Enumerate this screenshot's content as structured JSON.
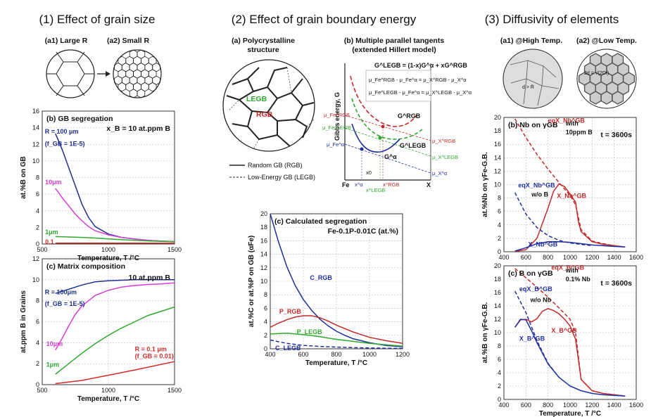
{
  "sections": {
    "s1": "(1) Effect of grain size",
    "s2": "(2) Effect of grain boundary energy",
    "s3": "(3) Diffusivity of elements"
  },
  "s1_schematic": {
    "a1": "(a1) Large R",
    "a2": "(a2) Small R"
  },
  "s2_schematic": {
    "a": "(a) Polycrystalline structure",
    "a_line1": "(a) Polycrystalline",
    "a_line2": "structure",
    "legb": "LEGB",
    "rgb": "RGB",
    "legend_rgb": "Random GB (RGB)",
    "legend_legb": "Low-Energy GB (LEGB)",
    "b_line1": "(b) Multiple parallel tangents",
    "b_line2": "(extended Hillert model)",
    "eq_main": "G^LEGB = (1-x)G^α + xG^RGB",
    "eq_rgb": "μ_Fe^RGB - μ_Fe^α = μ_X^RGB - μ_X^α",
    "eq_legb": "μ_Fe^LEGB - μ_Fe^α = μ_X^LEGB - μ_X^α",
    "ylabel": "Gibbs energy, G",
    "xl_fe": "Fe",
    "xl_x": "X",
    "c_grgb": "G^RGB",
    "c_glegb": "G^LEGB",
    "c_galpha": "G^α",
    "mu_fe_rgb": "μ_Fe^RGB",
    "mu_fe_legb": "μ_Fe^LEGB",
    "mu_fe_a": "μ_Fe^α",
    "mu_x_rgb": "μ_X^RGB",
    "mu_x_legb": "μ_X^LEGB",
    "mu_x_a": "μ_X^α",
    "x0": "x0",
    "xa": "x^α",
    "xlegb": "x^LEGB",
    "xrgb": "x^RGB"
  },
  "s3_schematic": {
    "a1": "(a1) @High Temp.",
    "a2": "(a2) @Low Temp.",
    "note1": "d > R̄",
    "note2": "2d = √(2Dt)"
  },
  "chart_data": [
    {
      "id": "1b",
      "type": "line",
      "title": "(b) GB segregation",
      "annotation": "x_B = 10 at.ppm B",
      "xlabel": "Temperature, T /°C",
      "ylabel": "at.%B on GB",
      "xlim": [
        500,
        1500
      ],
      "ylim": [
        0,
        16
      ],
      "xticks": [
        500,
        1000,
        1500
      ],
      "yticks": [
        0,
        2,
        4,
        6,
        8,
        10,
        12,
        14,
        16
      ],
      "series": [
        {
          "name": "R = 100 μm (f_GB = 1E-5)",
          "color": "#1f2f8f",
          "x": [
            600,
            650,
            700,
            750,
            800,
            850,
            900,
            1000,
            1100,
            1200,
            1300,
            1400,
            1500
          ],
          "y": [
            13.3,
            11.4,
            9.2,
            7.0,
            4.8,
            3.2,
            2.1,
            1.2,
            0.8,
            0.6,
            0.45,
            0.35,
            0.3
          ]
        },
        {
          "name": "10 μm",
          "color": "#d43fd4",
          "x": [
            600,
            650,
            700,
            750,
            800,
            850,
            900,
            1000,
            1100,
            1200,
            1300,
            1400,
            1500
          ],
          "y": [
            6.7,
            5.6,
            4.6,
            3.6,
            2.8,
            2.1,
            1.6,
            1.1,
            0.8,
            0.6,
            0.45,
            0.35,
            0.3
          ]
        },
        {
          "name": "1 μm",
          "color": "#2fa82f",
          "x": [
            600,
            700,
            800,
            900,
            1000,
            1100,
            1200,
            1300,
            1400,
            1500
          ],
          "y": [
            0.9,
            0.85,
            0.8,
            0.72,
            0.62,
            0.52,
            0.44,
            0.37,
            0.32,
            0.28
          ]
        },
        {
          "name": "0.1",
          "color": "#d42a2a",
          "x": [
            600,
            800,
            1000,
            1200,
            1500
          ],
          "y": [
            0.1,
            0.1,
            0.1,
            0.1,
            0.09
          ]
        }
      ],
      "labels": {
        "r100": "R = 100 μm",
        "fgb100": "(f_GB = 1E-5)",
        "r10": "10μm",
        "r1": "1μm",
        "r01": "0.1"
      }
    },
    {
      "id": "1c",
      "type": "line",
      "title": "(c) Matrix composition",
      "annotation": "10 at.ppm B",
      "xlabel": "Temperature, T /°C",
      "ylabel": "at.ppm B in Grains",
      "xlim": [
        500,
        1500
      ],
      "ylim": [
        0,
        12
      ],
      "xticks": [
        500,
        1000,
        1500
      ],
      "yticks": [
        0,
        2,
        4,
        6,
        8,
        10,
        12
      ],
      "series": [
        {
          "name": "R = 100 μm (f_GB = 1E-5)",
          "color": "#1f2f8f",
          "x": [
            600,
            700,
            800,
            900,
            1000,
            1200,
            1500
          ],
          "y": [
            8.7,
            9.1,
            9.5,
            9.8,
            9.9,
            10.0,
            10.0
          ]
        },
        {
          "name": "10 μm",
          "color": "#d43fd4",
          "x": [
            600,
            650,
            700,
            750,
            800,
            900,
            1000,
            1100,
            1200,
            1300,
            1400,
            1500
          ],
          "y": [
            3.3,
            4.4,
            5.6,
            6.7,
            7.5,
            8.5,
            9.0,
            9.3,
            9.45,
            9.55,
            9.6,
            9.7
          ]
        },
        {
          "name": "1 μm",
          "color": "#2fa82f",
          "x": [
            600,
            700,
            800,
            900,
            1000,
            1100,
            1200,
            1300,
            1400,
            1500
          ],
          "y": [
            1.0,
            2.0,
            3.0,
            3.9,
            4.7,
            5.4,
            6.0,
            6.6,
            7.0,
            7.4
          ]
        },
        {
          "name": "R = 0.1 μm (f_GB = 0.01)",
          "color": "#d42a2a",
          "x": [
            600,
            800,
            1000,
            1200,
            1500
          ],
          "y": [
            0.1,
            0.4,
            0.9,
            1.4,
            2.2
          ]
        }
      ],
      "labels": {
        "r100": "R = 100μm",
        "fgb100": "(f_GB = 1E-5)",
        "r10": "10μm",
        "r1": "1μm",
        "r01": "R = 0.1 μm",
        "fgb01": "(f_GB = 0.01)"
      }
    },
    {
      "id": "2c",
      "type": "line",
      "title": "(c) Calculated segregation",
      "annotation": "Fe-0.1P-0.01C (at.%)",
      "xlabel": "Temperature, T /°C",
      "ylabel": "at.%C or at.%P on GB (αFe)",
      "xlim": [
        400,
        1200
      ],
      "ylim": [
        0,
        20
      ],
      "xticks": [
        400,
        600,
        800,
        1000,
        1200
      ],
      "yticks": [
        0,
        2,
        4,
        6,
        8,
        10,
        12,
        14,
        16,
        18,
        20
      ],
      "series": [
        {
          "name": "C_RGB",
          "color": "#1f2f9f",
          "x": [
            400,
            450,
            500,
            550,
            600,
            650,
            700,
            750,
            800,
            850,
            900,
            950,
            1000,
            1100,
            1200
          ],
          "y": [
            20.0,
            15.8,
            12.2,
            9.4,
            7.3,
            5.7,
            4.4,
            3.4,
            2.6,
            2.0,
            1.5,
            1.2,
            0.9,
            0.5,
            0.3
          ]
        },
        {
          "name": "P_RGB",
          "color": "#c42a2a",
          "x": [
            400,
            450,
            500,
            550,
            600,
            650,
            700,
            750,
            800,
            900,
            1000,
            1100,
            1200
          ],
          "y": [
            3.2,
            3.8,
            4.3,
            4.7,
            4.9,
            4.9,
            4.6,
            4.1,
            3.5,
            2.5,
            1.7,
            1.2,
            0.8
          ]
        },
        {
          "name": "P_LEGB",
          "color": "#2fa82f",
          "x": [
            400,
            500,
            600,
            700,
            800,
            900,
            1000,
            1100,
            1200
          ],
          "y": [
            2.2,
            2.3,
            2.1,
            1.8,
            1.4,
            1.1,
            0.8,
            0.6,
            0.4
          ]
        },
        {
          "name": "C_LEGB",
          "color": "#1f2f9f",
          "dashed": true,
          "x": [
            400,
            500,
            600,
            700,
            800,
            900,
            1000,
            1100,
            1200
          ],
          "y": [
            1.3,
            0.8,
            0.5,
            0.35,
            0.25,
            0.18,
            0.12,
            0.08,
            0.05
          ]
        }
      ],
      "labels": {
        "crgb": "C_RGB",
        "prgb": "P_RGB",
        "plegb": "P_LEGB",
        "clegb": "C_LEGB"
      }
    },
    {
      "id": "3b",
      "type": "line",
      "title": "(b) Nb on γGB",
      "annotation": "t = 3600s",
      "xlabel": "",
      "ylabel": "at.%Nb on γFe-G.B.",
      "xlim": [
        400,
        1600
      ],
      "ylim": [
        0,
        20
      ],
      "xticks": [
        400,
        600,
        800,
        1000,
        1200,
        1400,
        1600
      ],
      "yticks": [
        0,
        2,
        4,
        6,
        8,
        10,
        12,
        14,
        16,
        18,
        20
      ],
      "series": [
        {
          "name": "eqX_Nb^GB with 10ppm B",
          "color": "#c42a2a",
          "dashed": true,
          "x": [
            500,
            600,
            700,
            800,
            900,
            1000,
            1050,
            1100,
            1200,
            1300,
            1400,
            1500
          ],
          "y": [
            19.8,
            17.0,
            14.5,
            12.3,
            10.3,
            8.4,
            7.0,
            3.3,
            1.6,
            1.2,
            0.9,
            0.7
          ]
        },
        {
          "name": "X_Nb^GB (with B)",
          "color": "#c42a2a",
          "x": [
            500,
            600,
            700,
            800,
            850,
            900,
            950,
            1000,
            1050,
            1075,
            1100,
            1200,
            1300,
            1400,
            1500
          ],
          "y": [
            0.05,
            0.3,
            2.0,
            6.5,
            9.0,
            10.1,
            9.7,
            8.6,
            7.4,
            4.5,
            3.0,
            1.5,
            1.1,
            0.9,
            0.7
          ]
        },
        {
          "name": "eqX_Nb^GB w/o B",
          "color": "#1f2f9f",
          "dashed": true,
          "x": [
            500,
            600,
            700,
            800,
            900,
            1000,
            1100,
            1200
          ],
          "y": [
            8.8,
            5.6,
            3.6,
            2.4,
            1.7,
            1.3,
            1.1,
            0.9
          ]
        },
        {
          "name": "X_Nb^GB (w/o B)",
          "color": "#1f2f9f",
          "x": [
            500,
            600,
            700,
            800,
            900,
            1000,
            1100,
            1200,
            1300,
            1400,
            1500
          ],
          "y": [
            0.1,
            0.6,
            1.2,
            1.5,
            1.5,
            1.4,
            1.2,
            1.0,
            0.9,
            0.8,
            0.7
          ]
        }
      ],
      "labels": {
        "eq_with": "eqX_Nb^GB",
        "with_note1": "with",
        "with_note2": "10ppm B",
        "x_with": "X_Nb^GB",
        "eq_wo": "eqX_Nb^GB",
        "wo_note": "w/o B",
        "x_wo": "X_Nb^GB"
      }
    },
    {
      "id": "3c",
      "type": "line",
      "title": "(c) B on γGB",
      "annotation": "t = 3600s",
      "xlabel": "Temperature, T /°C",
      "ylabel": "at.%B on γFe-G.B.",
      "xlim": [
        400,
        1600
      ],
      "ylim": [
        0,
        20
      ],
      "xticks": [
        400,
        600,
        800,
        1000,
        1200,
        1400,
        1600
      ],
      "yticks": [
        0,
        2,
        4,
        6,
        8,
        10,
        12,
        14,
        16,
        18,
        20
      ],
      "series": [
        {
          "name": "eqX_B^GB with 0.1% Nb",
          "color": "#c42a2a",
          "dashed": true,
          "x": [
            500,
            600,
            700,
            800,
            900,
            1000,
            1050,
            1100,
            1200,
            1300,
            1400,
            1500
          ],
          "y": [
            19.6,
            18.2,
            16.8,
            15.3,
            13.7,
            12.0,
            10.0,
            3.0,
            1.3,
            0.9,
            0.7,
            0.5
          ]
        },
        {
          "name": "X_B^GB (with Nb)",
          "color": "#c42a2a",
          "x": [
            500,
            550,
            600,
            650,
            700,
            750,
            800,
            850,
            900,
            950,
            1000,
            1050,
            1100,
            1200,
            1300,
            1400,
            1500
          ],
          "y": [
            10.8,
            11.9,
            12.0,
            11.6,
            12.1,
            13.2,
            13.6,
            13.3,
            12.8,
            12.0,
            11.0,
            9.0,
            3.0,
            1.3,
            0.9,
            0.7,
            0.5
          ]
        },
        {
          "name": "eqX_B^GB w/o Nb",
          "color": "#1f2f9f",
          "dashed": true,
          "x": [
            500,
            600,
            700,
            800,
            900
          ],
          "y": [
            16.2,
            13.0,
            8.8,
            5.4,
            3.3
          ]
        },
        {
          "name": "X_B^GB (w/o Nb)",
          "color": "#1f2f9f",
          "x": [
            500,
            550,
            600,
            650,
            700,
            800,
            900,
            1000,
            1100,
            1200,
            1300,
            1400,
            1500
          ],
          "y": [
            10.8,
            12.0,
            11.9,
            10.3,
            8.5,
            5.3,
            3.3,
            2.0,
            1.3,
            0.9,
            0.7,
            0.6,
            0.5
          ]
        }
      ],
      "labels": {
        "eq_with": "eqX_B^GB",
        "with_note1": "with",
        "with_note2": "0.1% Nb",
        "x_with": "X_B^GB",
        "eq_wo": "eqX_B^GB",
        "wo_note": "w/o Nb",
        "x_wo": "X_B^GB"
      }
    }
  ]
}
